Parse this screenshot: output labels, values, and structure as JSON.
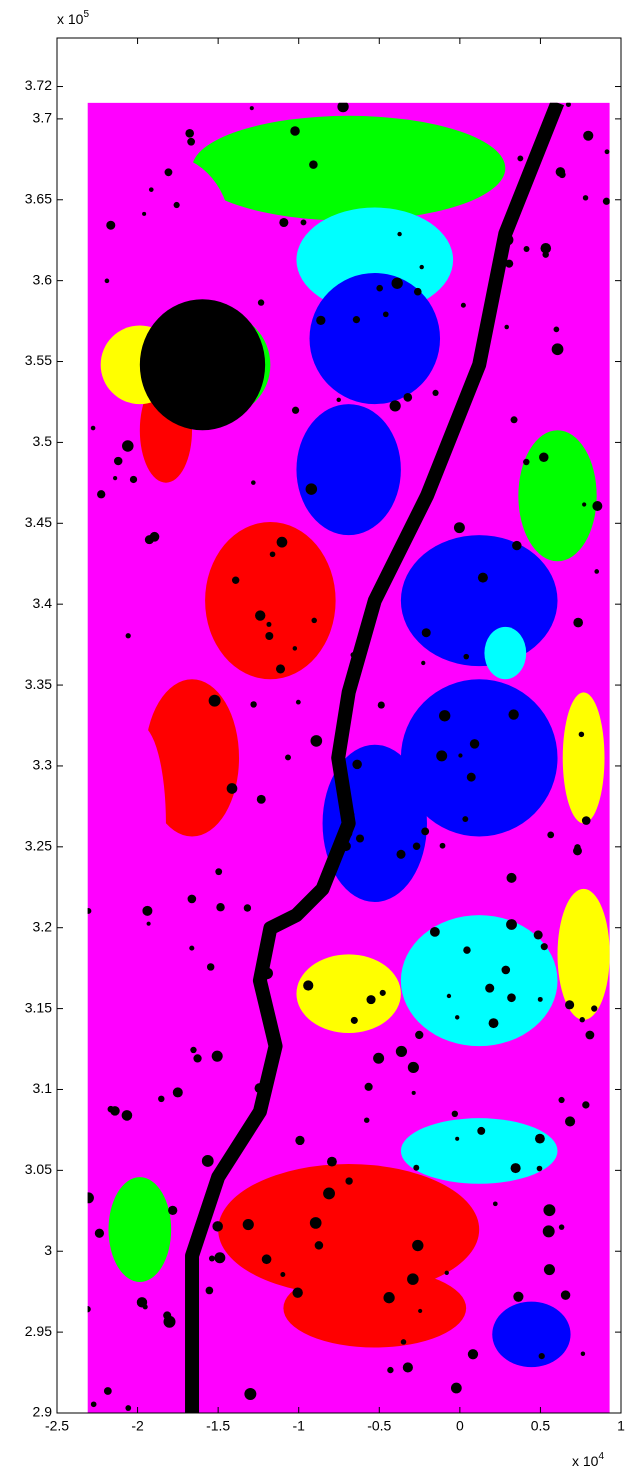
{
  "chart_data": {
    "type": "image",
    "x_multiplier": {
      "base": "x 10",
      "exponent": "4"
    },
    "y_multiplier": {
      "base": "x 10",
      "exponent": "5"
    },
    "xlim": [
      -2.5,
      1
    ],
    "ylim": [
      2.9,
      3.75
    ],
    "xticks": [
      -2.5,
      -2,
      -1.5,
      -1,
      -0.5,
      0,
      0.5,
      1
    ],
    "yticks": [
      2.9,
      2.95,
      3,
      3.05,
      3.1,
      3.15,
      3.2,
      3.25,
      3.3,
      3.35,
      3.4,
      3.45,
      3.5,
      3.55,
      3.6,
      3.65,
      3.7,
      3.72
    ],
    "image_extent": {
      "xlim": [
        -2.31,
        0.93
      ],
      "ylim": [
        2.9,
        3.71
      ]
    }
  }
}
